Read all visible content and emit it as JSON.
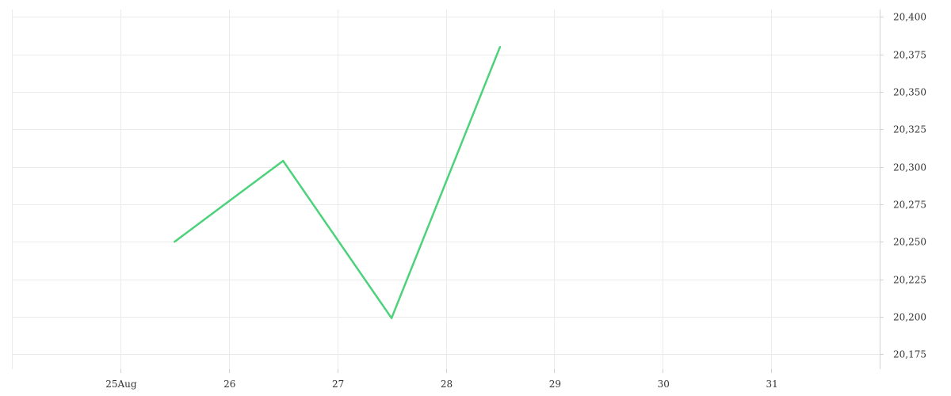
{
  "chart_data": {
    "type": "line",
    "title": "",
    "xlabel": "",
    "ylabel": "",
    "x_ticks": [
      "25Aug",
      "26",
      "27",
      "28",
      "29",
      "30",
      "31"
    ],
    "y_ticks": [
      "20,175",
      "20,200",
      "20,225",
      "20,250",
      "20,275",
      "20,300",
      "20,325",
      "20,350",
      "20,375",
      "20,400"
    ],
    "y_tick_values": [
      20175,
      20200,
      20225,
      20250,
      20275,
      20300,
      20325,
      20350,
      20375,
      20400
    ],
    "ylim": [
      20165,
      20405
    ],
    "xlim": [
      "2024-08-24",
      "2024-09-01"
    ],
    "y_axis_position": "right",
    "grid": true,
    "series": [
      {
        "x": [
          "2024-08-25 12:00",
          "2024-08-26 12:00",
          "2024-08-27 12:00",
          "2024-08-28 12:00"
        ],
        "values": [
          20250,
          20304,
          20199,
          20380
        ],
        "color": "#4cd27a"
      }
    ]
  }
}
